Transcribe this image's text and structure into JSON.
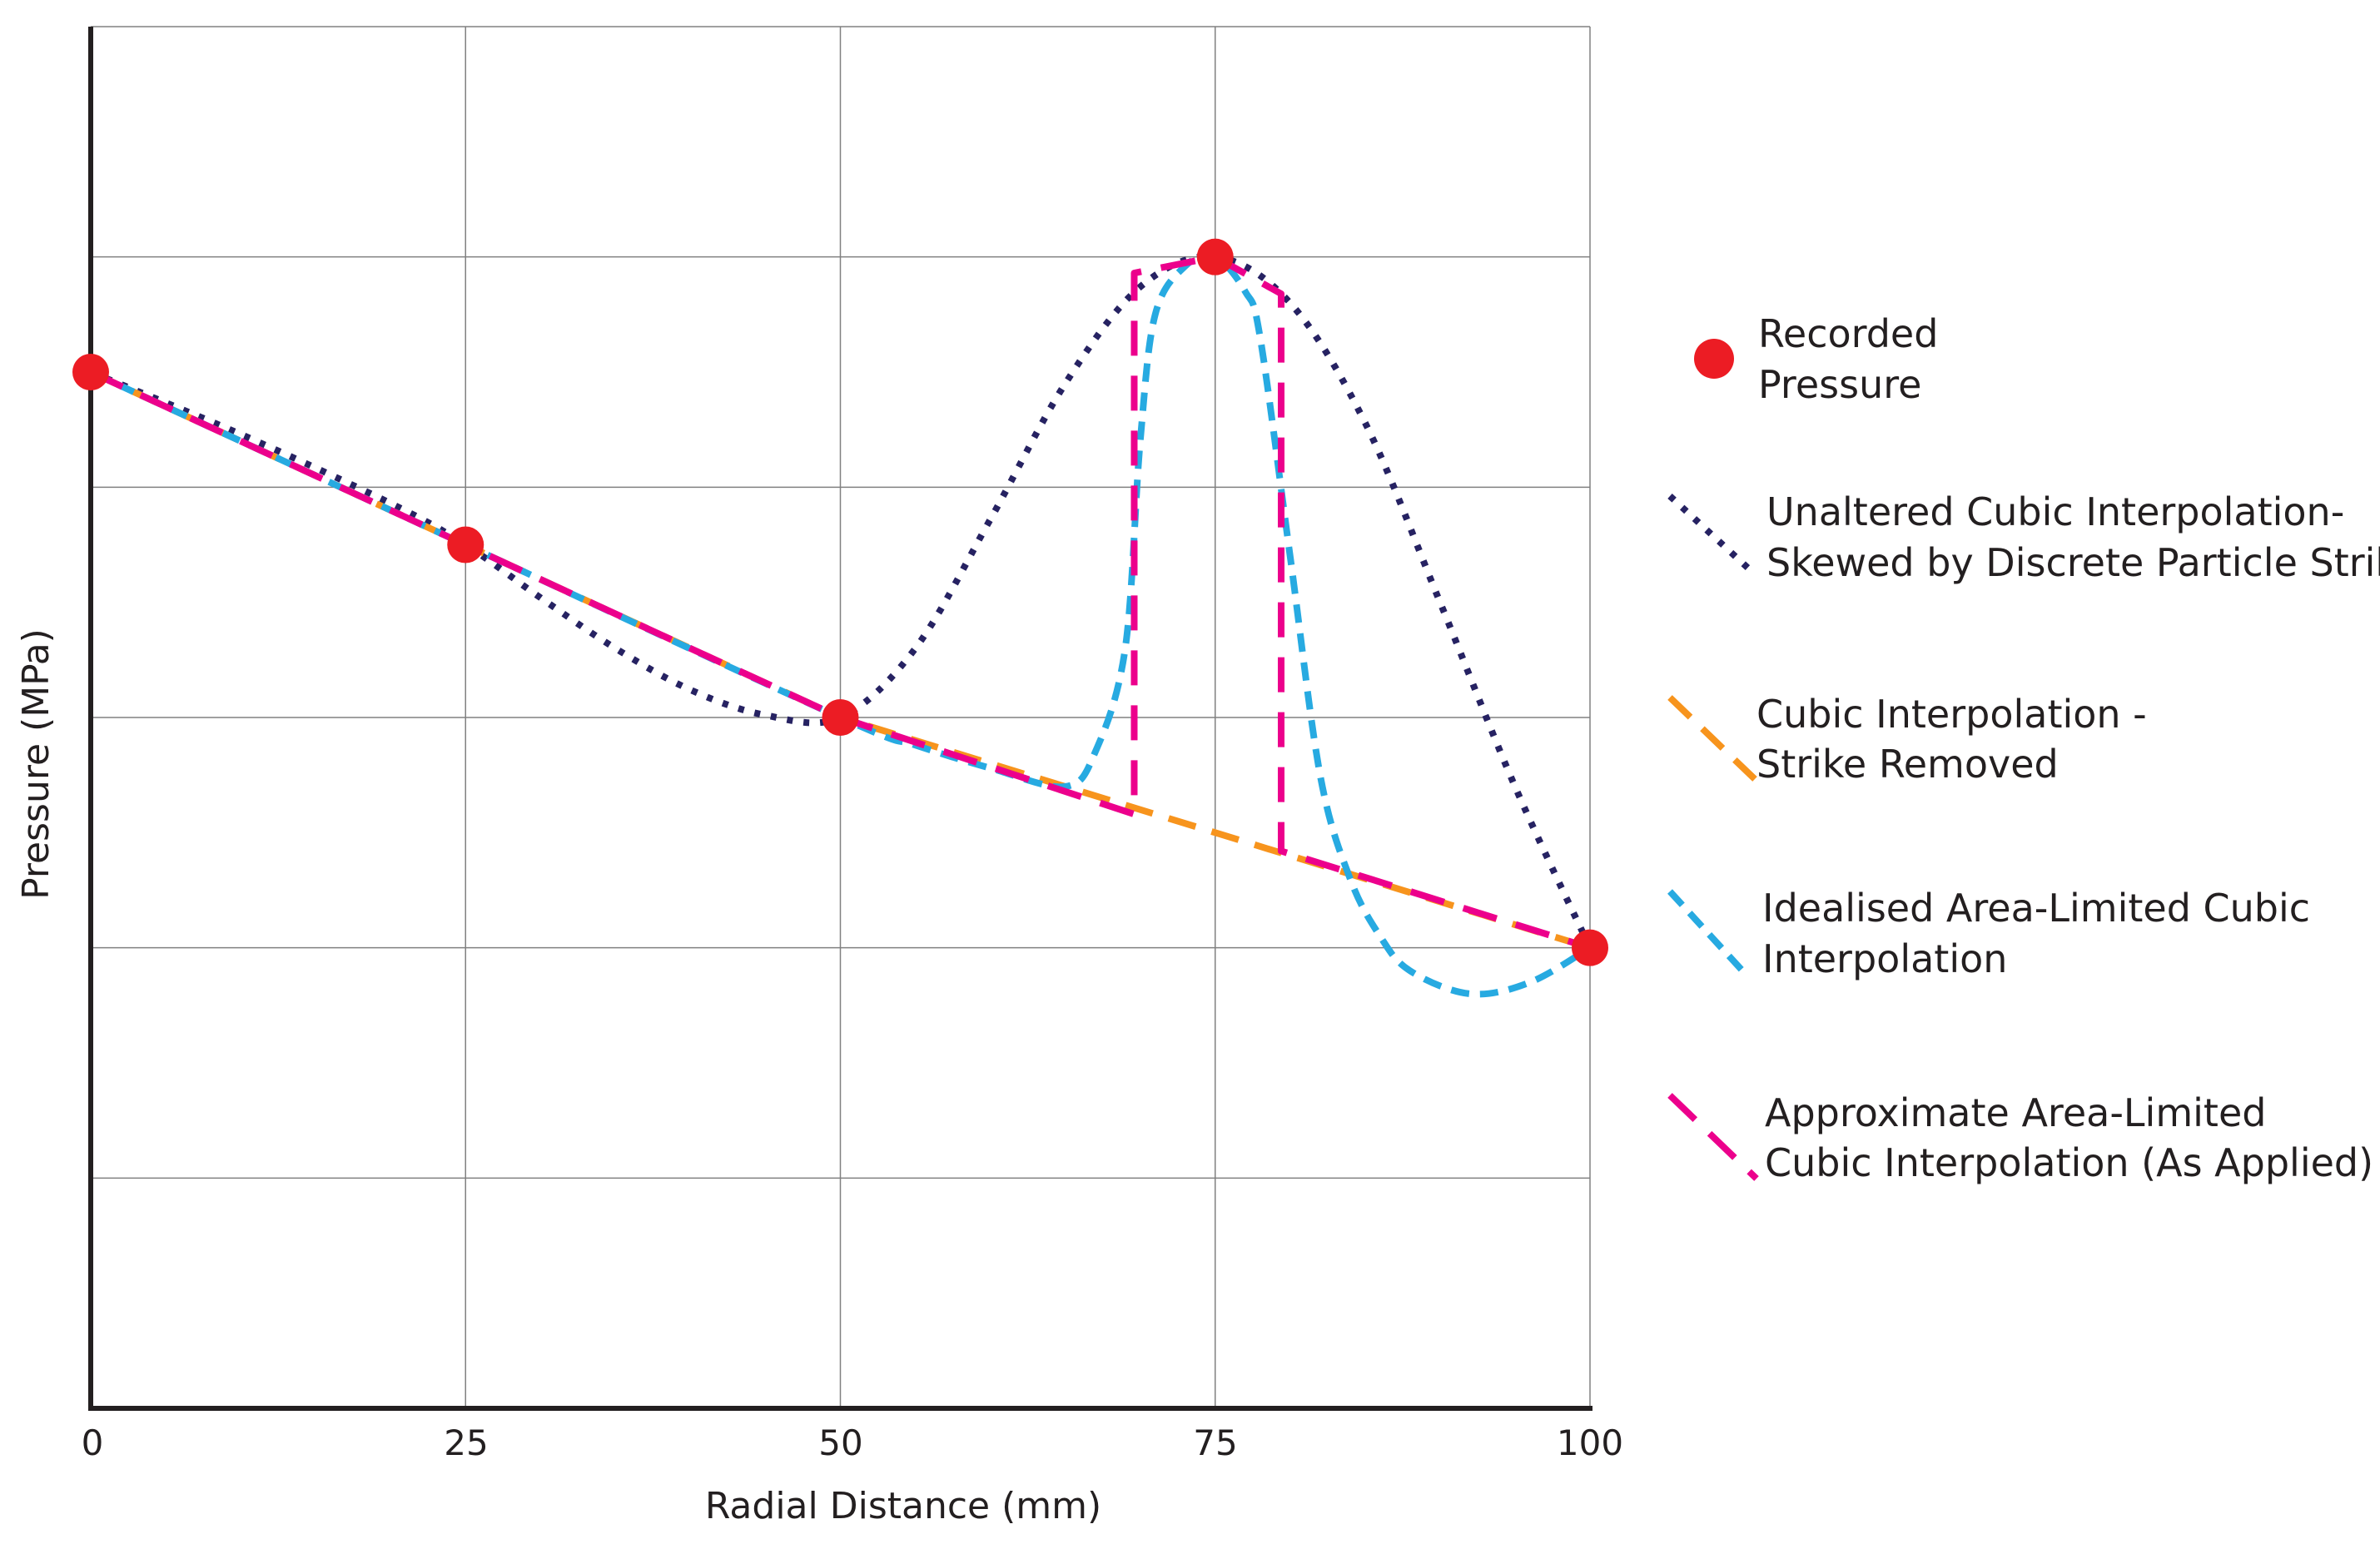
{
  "chart_data": {
    "type": "line",
    "title": "",
    "xlabel": "Radial Distance (mm)",
    "ylabel": "Pressure (MPa)",
    "xlim": [
      0,
      100
    ],
    "ylim": [
      0,
      6
    ],
    "x_ticks": [
      "0",
      "25",
      "50",
      "75",
      "100"
    ],
    "y_ticks_labeled": false,
    "grid": true,
    "legend_position": "right",
    "colors": {
      "recorded": "#ec1c24",
      "unaltered": "#262262",
      "strike_removed": "#f7941d",
      "idealised": "#27aae1",
      "approximate": "#ec008c",
      "axis": "#231f20",
      "grid": "#808080"
    },
    "series": [
      {
        "name": "Recorded Pressure",
        "style": "markers",
        "x": [
          0,
          25,
          50,
          75,
          100
        ],
        "y": [
          4.5,
          3.75,
          3.0,
          5.0,
          2.0
        ]
      },
      {
        "name": "Unaltered Cubic Interpolation- Skewed by Discrete Particle Strike",
        "style": "dotted",
        "x": [
          0,
          10,
          20,
          25,
          30,
          35,
          40,
          45,
          50,
          55,
          60,
          65,
          70,
          75,
          80,
          85,
          90,
          95,
          100
        ],
        "y": [
          4.5,
          4.23,
          3.93,
          3.75,
          3.52,
          3.3,
          3.12,
          3.01,
          3.0,
          3.3,
          3.86,
          4.45,
          4.87,
          5.0,
          4.8,
          4.28,
          3.5,
          2.7,
          2.0
        ]
      },
      {
        "name": "Cubic Interpolation - Strike Removed",
        "style": "dashed",
        "x": [
          0,
          25,
          50,
          75,
          100
        ],
        "y": [
          4.5,
          3.75,
          3.0,
          2.5,
          2.0
        ]
      },
      {
        "name": "Idealised Area-Limited Cubic Interpolation",
        "style": "dashed",
        "x": [
          0,
          25,
          50,
          55,
          60,
          65,
          67,
          69,
          70,
          71,
          73,
          75,
          77,
          78,
          80,
          82,
          84,
          86,
          88,
          92,
          96,
          100
        ],
        "y": [
          4.5,
          3.75,
          3.0,
          2.88,
          2.78,
          2.7,
          2.85,
          3.3,
          4.2,
          4.75,
          4.96,
          5.0,
          4.85,
          4.65,
          3.7,
          2.75,
          2.3,
          2.05,
          1.9,
          1.8,
          1.85,
          2.0
        ]
      },
      {
        "name": "Approximate Area-Limited Cubic Interpolation (As Applied)",
        "style": "dashed",
        "x": [
          0,
          25,
          50,
          69.6,
          69.6,
          75,
          79.4,
          79.4,
          100
        ],
        "y": [
          4.5,
          3.75,
          3.0,
          2.58,
          4.93,
          5.0,
          4.84,
          2.42,
          2.0
        ]
      }
    ],
    "legend": [
      {
        "key": "recorded",
        "lines": [
          "Recorded",
          "Pressure"
        ]
      },
      {
        "key": "unaltered",
        "lines": [
          "Unaltered Cubic Interpolation-",
          "Skewed by Discrete Particle Strike"
        ]
      },
      {
        "key": "strike_removed",
        "lines": [
          "Cubic Interpolation -",
          "Strike Removed"
        ]
      },
      {
        "key": "idealised",
        "lines": [
          "Idealised Area-Limited Cubic",
          "Interpolation"
        ]
      },
      {
        "key": "approximate",
        "lines": [
          "Approximate Area-Limited",
          "Cubic Interpolation (As Applied)"
        ]
      }
    ]
  }
}
